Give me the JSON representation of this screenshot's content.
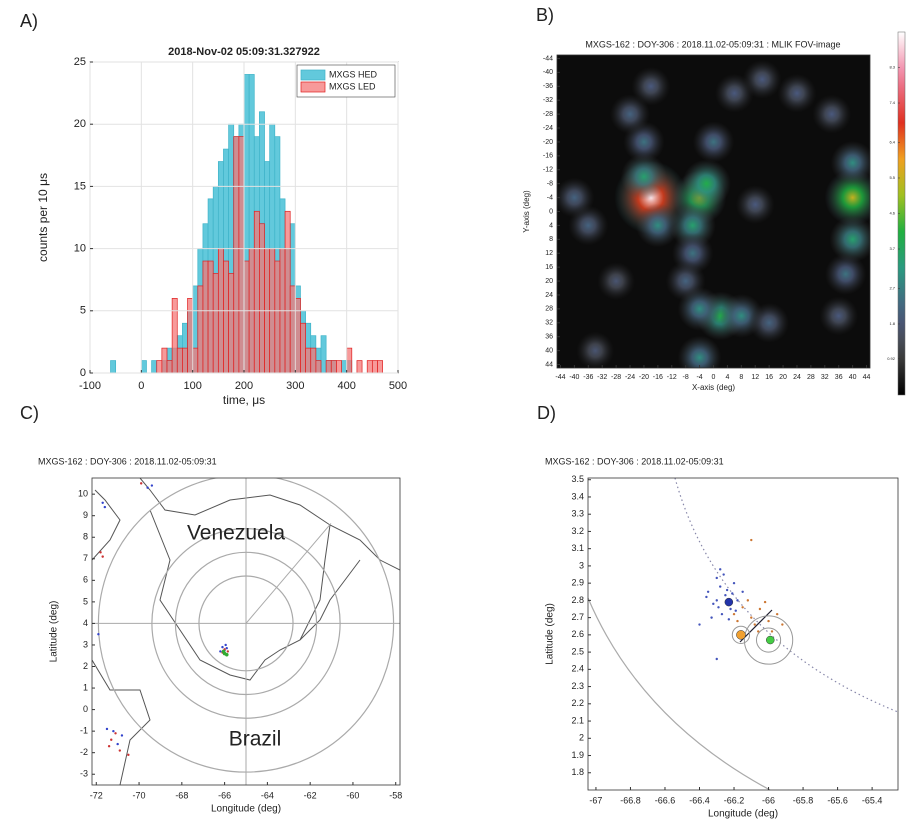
{
  "chart_data": [
    {
      "type": "histogram",
      "panel": "A)",
      "title": "2018-Nov-02 05:09:31.327922",
      "xlabel": "time, μs",
      "ylabel": "counts per 10 μs",
      "bins": [
        -100,
        -90,
        -80,
        -70,
        -60,
        -50,
        -40,
        -30,
        -20,
        -10,
        0,
        10,
        20,
        30,
        40,
        50,
        60,
        70,
        80,
        90,
        100,
        110,
        120,
        130,
        140,
        150,
        160,
        170,
        180,
        190,
        200,
        210,
        220,
        230,
        240,
        250,
        260,
        270,
        280,
        290,
        300,
        310,
        320,
        330,
        340,
        350,
        360,
        370,
        380,
        390,
        400,
        410,
        420,
        430,
        440,
        450,
        460,
        470,
        480,
        490,
        500
      ],
      "series": [
        {
          "name": "MXGS HED",
          "color": "#62c9dc",
          "edgecolor": "#3fb3c8",
          "values": [
            0,
            0,
            0,
            0,
            1,
            0,
            0,
            0,
            0,
            0,
            1,
            0,
            1,
            0,
            1,
            2,
            2,
            3,
            4,
            5,
            7,
            10,
            12,
            14,
            15,
            17,
            18,
            20,
            19,
            20,
            24,
            24,
            19,
            21,
            17,
            20,
            19,
            14,
            10,
            12,
            7,
            5,
            4,
            3,
            2,
            3,
            1,
            1,
            0,
            1,
            1,
            0,
            0,
            0,
            0,
            0,
            0,
            0,
            0,
            0
          ]
        },
        {
          "name": "MXGS LED",
          "color": "rgba(244,120,120,0.75)",
          "edgecolor": "#e02020",
          "values": [
            0,
            0,
            0,
            0,
            0,
            0,
            0,
            0,
            0,
            0,
            0,
            0,
            0,
            1,
            2,
            1,
            6,
            2,
            2,
            6,
            2,
            7,
            9,
            9,
            8,
            10,
            9,
            8,
            19,
            19,
            9,
            10,
            13,
            12,
            10,
            10,
            9,
            10,
            13,
            7,
            6,
            4,
            2,
            2,
            1,
            0,
            1,
            1,
            1,
            0,
            2,
            0,
            1,
            0,
            1,
            1,
            1,
            0,
            0,
            0
          ]
        }
      ],
      "xlim": [
        -100,
        500
      ],
      "xticks": [
        -100,
        0,
        100,
        200,
        300,
        400,
        500
      ],
      "ylim": [
        0,
        25
      ],
      "yticks": [
        0,
        5,
        10,
        15,
        20,
        25
      ],
      "grid": true,
      "legend": "upper right"
    },
    {
      "type": "heatmap",
      "panel": "B)",
      "title": "MXGS-162 : DOY-306 : 2018.11.02-05:09:31 : MLIK FOV-image",
      "xlabel": "X-axis (deg)",
      "ylabel": "Y-axis (deg)",
      "x": [
        -18,
        -20,
        -16,
        -20,
        -24,
        -18,
        -4,
        -2,
        -6,
        -6,
        -8,
        0,
        6,
        14,
        24,
        34,
        40,
        40,
        40,
        38,
        36,
        2,
        -4,
        8,
        16,
        -36,
        -40,
        -4,
        12,
        -28,
        -34
      ],
      "y": [
        -4,
        -10,
        4,
        -20,
        -28,
        -36,
        -4,
        -8,
        4,
        12,
        20,
        -20,
        -34,
        -38,
        -34,
        -28,
        -4,
        -14,
        8,
        18,
        30,
        30,
        28,
        30,
        32,
        4,
        -4,
        42,
        -2,
        20,
        40
      ],
      "values": [
        9.0,
        3.5,
        3.0,
        2.5,
        2.2,
        2.0,
        5.0,
        4.0,
        3.5,
        2.5,
        2.2,
        2.5,
        2.0,
        2.0,
        2.0,
        2.0,
        5.5,
        3.0,
        3.5,
        2.5,
        2.0,
        4.0,
        3.0,
        3.0,
        2.2,
        2.2,
        2.2,
        3.0,
        2.0,
        1.8,
        1.8
      ],
      "xlim": [
        -45,
        45
      ],
      "xticks": [
        -44,
        -40,
        -36,
        -32,
        -28,
        -24,
        -20,
        -16,
        -12,
        -8,
        -4,
        0,
        4,
        8,
        12,
        16,
        20,
        24,
        28,
        32,
        36,
        40,
        44
      ],
      "ylim": [
        45,
        -45
      ],
      "yticks": [
        -44,
        -40,
        -36,
        -32,
        -28,
        -24,
        -20,
        -16,
        -12,
        -8,
        -4,
        0,
        4,
        8,
        12,
        16,
        20,
        24,
        28,
        32,
        36,
        40,
        44
      ],
      "colorbar": {
        "lim": [
          0,
          9.2
        ],
        "ticks": [
          0.92,
          1.8,
          2.7,
          3.7,
          4.6,
          5.5,
          6.4,
          7.4,
          8.3
        ]
      },
      "grid": false
    },
    {
      "type": "scatter",
      "panel": "C)",
      "title": "MXGS-162 : DOY-306 : 2018.11.02-05:09:31",
      "xlabel": "Longitude (deg)",
      "ylabel": "Latitude (deg)",
      "annotations": [
        "Venezuela",
        "Brazil"
      ],
      "rings": {
        "center": [
          -65,
          4
        ],
        "radii": [
          2.2,
          3.3,
          4.4,
          6.9
        ]
      },
      "series": [
        {
          "color": "#3344cc",
          "marker_size": 1.2,
          "x": [
            -66.1,
            -66.0,
            -65.9,
            -66.2,
            -65.95,
            -71.7,
            -71.6,
            -71.9,
            -71.2,
            -71.0,
            -70.8,
            -69.6,
            -69.4,
            -71.5
          ],
          "y": [
            2.9,
            2.75,
            2.85,
            2.7,
            3.0,
            9.6,
            9.4,
            3.5,
            -1.0,
            -1.6,
            -1.2,
            10.3,
            10.4,
            -0.9
          ]
        },
        {
          "color": "#cc3333",
          "marker_size": 1.2,
          "x": [
            -66.0,
            -66.1,
            -65.85,
            -71.8,
            -71.7,
            -71.3,
            -71.1,
            -70.9,
            -71.4,
            -70.5,
            -69.9
          ],
          "y": [
            2.8,
            2.65,
            2.7,
            7.3,
            7.1,
            -1.4,
            -1.1,
            -1.9,
            -1.7,
            -2.1,
            10.5
          ]
        },
        {
          "color": "#33aa33",
          "marker_size": 1.8,
          "x": [
            -66.0,
            -65.9,
            -66.05
          ],
          "y": [
            2.6,
            2.55,
            2.7
          ]
        }
      ],
      "xlim": [
        -72.2,
        -57.8
      ],
      "xticks": [
        -72,
        -70,
        -68,
        -66,
        -64,
        -62,
        -60,
        -58
      ],
      "ylim": [
        -3.5,
        10.75
      ],
      "yticks": [
        -3,
        -2,
        -1,
        0,
        1,
        2,
        3,
        4,
        5,
        6,
        7,
        8,
        9,
        10
      ],
      "grid": false
    },
    {
      "type": "scatter",
      "panel": "D)",
      "title": "MXGS-162 : DOY-306 : 2018.11.02-05:09:31",
      "xlabel": "Longitude (deg)",
      "ylabel": "Latitude (deg)",
      "rings": [
        {
          "x": -66.16,
          "y": 2.6,
          "r": 0.05
        },
        {
          "x": -66.0,
          "y": 2.57,
          "r": 0.07
        },
        {
          "x": -66.0,
          "y": 2.57,
          "r": 0.14
        }
      ],
      "series": [
        {
          "color": "#4455bb",
          "marker_size": 1.2,
          "x": [
            -66.35,
            -66.3,
            -66.28,
            -66.25,
            -66.22,
            -66.2,
            -66.32,
            -66.27,
            -66.24,
            -66.3,
            -66.18,
            -66.26,
            -66.33,
            -66.21,
            -66.29,
            -66.23,
            -66.36,
            -66.19,
            -66.28,
            -66.15,
            -66.3,
            -66.4
          ],
          "y": [
            2.85,
            2.8,
            2.88,
            2.83,
            2.75,
            2.9,
            2.78,
            2.72,
            2.86,
            2.93,
            2.8,
            2.95,
            2.7,
            2.84,
            2.76,
            2.69,
            2.82,
            2.74,
            2.98,
            2.85,
            2.46,
            2.66
          ]
        },
        {
          "color": "#cc7733",
          "marker_size": 1.2,
          "x": [
            -66.2,
            -66.15,
            -66.1,
            -66.05,
            -66.0,
            -65.95,
            -66.12,
            -66.08,
            -65.98,
            -66.18,
            -66.02,
            -65.92,
            -66.06,
            -66.1
          ],
          "y": [
            2.72,
            2.76,
            2.7,
            2.75,
            2.68,
            2.72,
            2.8,
            2.66,
            2.62,
            2.68,
            2.79,
            2.66,
            2.62,
            3.15
          ]
        },
        {
          "color": "#2233aa",
          "marker_size": 4,
          "x": [
            -66.23
          ],
          "y": [
            2.79
          ]
        },
        {
          "color": "#f0a030",
          "marker_size": 4.5,
          "x": [
            -66.16
          ],
          "y": [
            2.6
          ]
        },
        {
          "color": "#44cc44",
          "marker_size": 4,
          "x": [
            -65.99
          ],
          "y": [
            2.57
          ]
        }
      ],
      "xlim": [
        -67.046,
        -65.25
      ],
      "xticks": [
        -67,
        -66.8,
        -66.6,
        -66.4,
        -66.2,
        -66,
        -65.8,
        -65.6,
        -65.4
      ],
      "ylim": [
        1.7,
        3.51
      ],
      "yticks": [
        1.8,
        1.9,
        2,
        2.1,
        2.2,
        2.3,
        2.4,
        2.5,
        2.6,
        2.7,
        2.8,
        2.9,
        3,
        3.1,
        3.2,
        3.3,
        3.4,
        3.5
      ],
      "grid": false
    }
  ]
}
